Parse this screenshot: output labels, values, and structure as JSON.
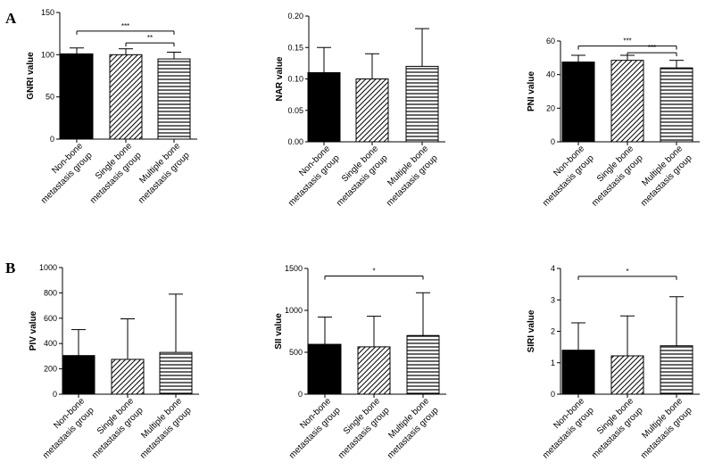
{
  "panels": [
    {
      "label": "A"
    },
    {
      "label": "B"
    }
  ],
  "chart_data": [
    {
      "type": "bar",
      "panel": "A",
      "ylabel": "GNRI value",
      "ylim": [
        0,
        150
      ],
      "yticks": [
        0,
        50,
        100,
        150
      ],
      "tick_labels": [
        "0",
        "50",
        "100",
        "150"
      ],
      "categories": [
        "Non-bone metastasis group",
        "Single bone metastasis group",
        "Multiple bone metastasis group"
      ],
      "values": [
        101,
        100,
        95
      ],
      "errors": [
        7,
        7,
        8
      ],
      "significance": [
        {
          "from": 0,
          "to": 2,
          "label": "***",
          "y": 128
        },
        {
          "from": 1,
          "to": 2,
          "label": "**",
          "y": 114
        }
      ]
    },
    {
      "type": "bar",
      "panel": "A",
      "ylabel": "NAR value",
      "ylim": [
        0,
        0.2
      ],
      "yticks": [
        0,
        0.05,
        0.1,
        0.15,
        0.2
      ],
      "tick_labels": [
        "0.00",
        "0.05",
        "0.10",
        "0.15",
        "0.20"
      ],
      "categories": [
        "Non-bone metastasis group",
        "Single bone metastasis group",
        "Multiple bone metastasis group"
      ],
      "values": [
        0.11,
        0.1,
        0.12
      ],
      "errors": [
        0.04,
        0.04,
        0.06
      ],
      "significance": []
    },
    {
      "type": "bar",
      "panel": "A",
      "ylabel": "PNI value",
      "ylim": [
        0,
        60
      ],
      "yticks": [
        0,
        20,
        40,
        60
      ],
      "tick_labels": [
        "0",
        "20",
        "40",
        "60"
      ],
      "categories": [
        "Non-bone metastasis group",
        "Single bone metastasis group",
        "Multiple bone metastasis group"
      ],
      "values": [
        47.5,
        48.5,
        44
      ],
      "errors": [
        4,
        3,
        4.5
      ],
      "significance": [
        {
          "from": 0,
          "to": 2,
          "label": "***",
          "y": 57
        },
        {
          "from": 1,
          "to": 2,
          "label": "***",
          "y": 53
        }
      ]
    },
    {
      "type": "bar",
      "panel": "B",
      "ylabel": "PIV value",
      "ylim": [
        0,
        1000
      ],
      "yticks": [
        0,
        200,
        400,
        600,
        800,
        1000
      ],
      "tick_labels": [
        "0",
        "200",
        "400",
        "600",
        "800",
        "1000"
      ],
      "categories": [
        "Non-bone metastasis group",
        "Single bone metastasis group",
        "Multiple bone metastasis group"
      ],
      "values": [
        305,
        275,
        330
      ],
      "errors": [
        205,
        320,
        460
      ],
      "significance": []
    },
    {
      "type": "bar",
      "panel": "B",
      "ylabel": "SII value",
      "ylim": [
        0,
        1500
      ],
      "yticks": [
        0,
        500,
        1000,
        1500
      ],
      "tick_labels": [
        "0",
        "500",
        "1000",
        "1500"
      ],
      "categories": [
        "Non-bone metastasis group",
        "Single bone metastasis group",
        "Multiple bone metastasis group"
      ],
      "values": [
        595,
        565,
        700
      ],
      "errors": [
        325,
        365,
        510
      ],
      "significance": [
        {
          "from": 0,
          "to": 2,
          "label": "*",
          "y": 1410
        }
      ]
    },
    {
      "type": "bar",
      "panel": "B",
      "ylabel": "SIRI value",
      "ylim": [
        0,
        4
      ],
      "yticks": [
        0,
        1,
        2,
        3,
        4
      ],
      "tick_labels": [
        "0",
        "1",
        "2",
        "3",
        "4"
      ],
      "categories": [
        "Non-bone metastasis group",
        "Single bone metastasis group",
        "Multiple bone metastasis group"
      ],
      "values": [
        1.4,
        1.22,
        1.54
      ],
      "errors": [
        0.87,
        1.27,
        1.56
      ],
      "significance": [
        {
          "from": 0,
          "to": 2,
          "label": "*",
          "y": 3.75
        }
      ]
    }
  ]
}
